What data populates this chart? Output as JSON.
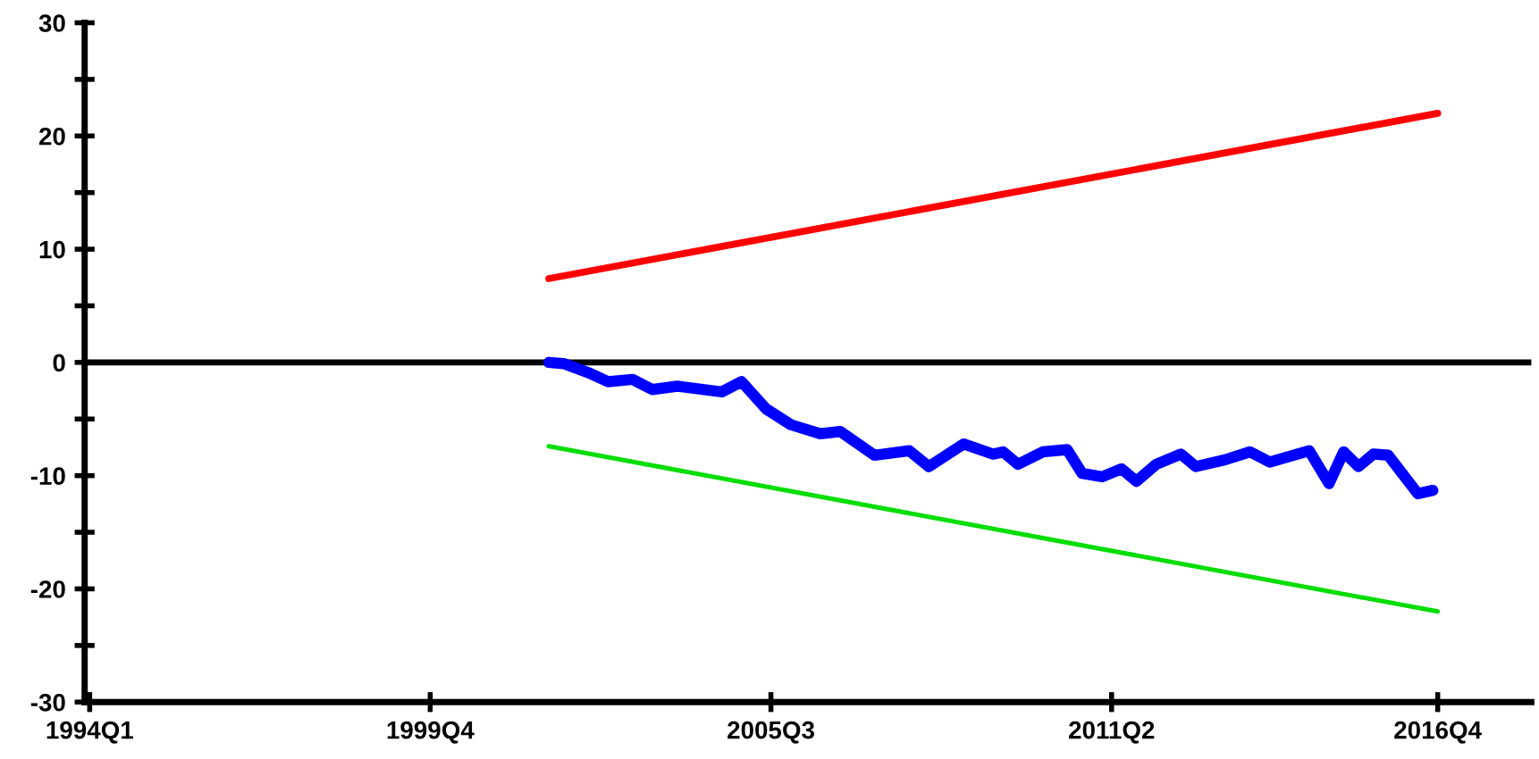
{
  "chart_data": {
    "type": "line",
    "xlim": [
      "1993-12",
      "2018-05"
    ],
    "ylim": [
      -30,
      30
    ],
    "xticks": [
      {
        "value": "1994-01",
        "label": "1994Q1"
      },
      {
        "value": "1999-10",
        "label": "1999Q4"
      },
      {
        "value": "2005-07",
        "label": "2005Q3"
      },
      {
        "value": "2011-04",
        "label": "2011Q2"
      },
      {
        "value": "2016-10",
        "label": "2016Q4"
      }
    ],
    "yticks": [
      -30,
      {
        "value": -25,
        "label": null
      },
      -20,
      {
        "value": -15,
        "label": null
      },
      -10,
      {
        "value": -5,
        "label": null
      },
      0,
      {
        "value": 5,
        "label": null
      },
      10,
      {
        "value": 15,
        "label": null
      },
      20,
      {
        "value": 25,
        "label": null
      },
      30
    ],
    "grid": false,
    "legend": false,
    "marker": "none",
    "line_style": "solid",
    "ref_lines": [
      {
        "axis": "y",
        "value": 0,
        "color": "#000000"
      }
    ],
    "series": [
      {
        "color": "#0000ff",
        "x": [
          "2001-10",
          "2002-01",
          "2002-06",
          "2002-10",
          "2003-03",
          "2003-07",
          "2003-12",
          "2004-09",
          "2005-01",
          "2005-06",
          "2005-11",
          "2006-05",
          "2006-09",
          "2007-04",
          "2007-11",
          "2008-03",
          "2008-10",
          "2009-04",
          "2009-06",
          "2009-09",
          "2010-02",
          "2010-07",
          "2010-10",
          "2011-02",
          "2011-06",
          "2011-09",
          "2012-01",
          "2012-06",
          "2012-09",
          "2013-03",
          "2013-08",
          "2013-12",
          "2014-08",
          "2014-12",
          "2015-03",
          "2015-06",
          "2015-09",
          "2015-12",
          "2016-06",
          "2016-09"
        ],
        "values": [
          0.0,
          -0.1,
          -0.9,
          -1.7,
          -1.5,
          -2.4,
          -2.1,
          -2.6,
          -1.7,
          -4.1,
          -5.5,
          -6.3,
          -6.1,
          -8.2,
          -7.8,
          -9.2,
          -7.2,
          -8.1,
          -7.9,
          -9.0,
          -7.9,
          -7.7,
          -9.8,
          -10.1,
          -9.4,
          -10.5,
          -9.0,
          -8.1,
          -9.2,
          -8.6,
          -7.9,
          -8.8,
          -7.8,
          -10.7,
          -7.9,
          -9.2,
          -8.1,
          -8.2,
          -11.6,
          -11.3
        ]
      },
      {
        "color": "#ff0000",
        "x": [
          "2001-10",
          "2016-10"
        ],
        "values": [
          7.4,
          22.0
        ]
      },
      {
        "color": "#00dd00",
        "x": [
          "2001-10",
          "2016-10"
        ],
        "values": [
          -7.4,
          -22.0
        ]
      }
    ]
  }
}
